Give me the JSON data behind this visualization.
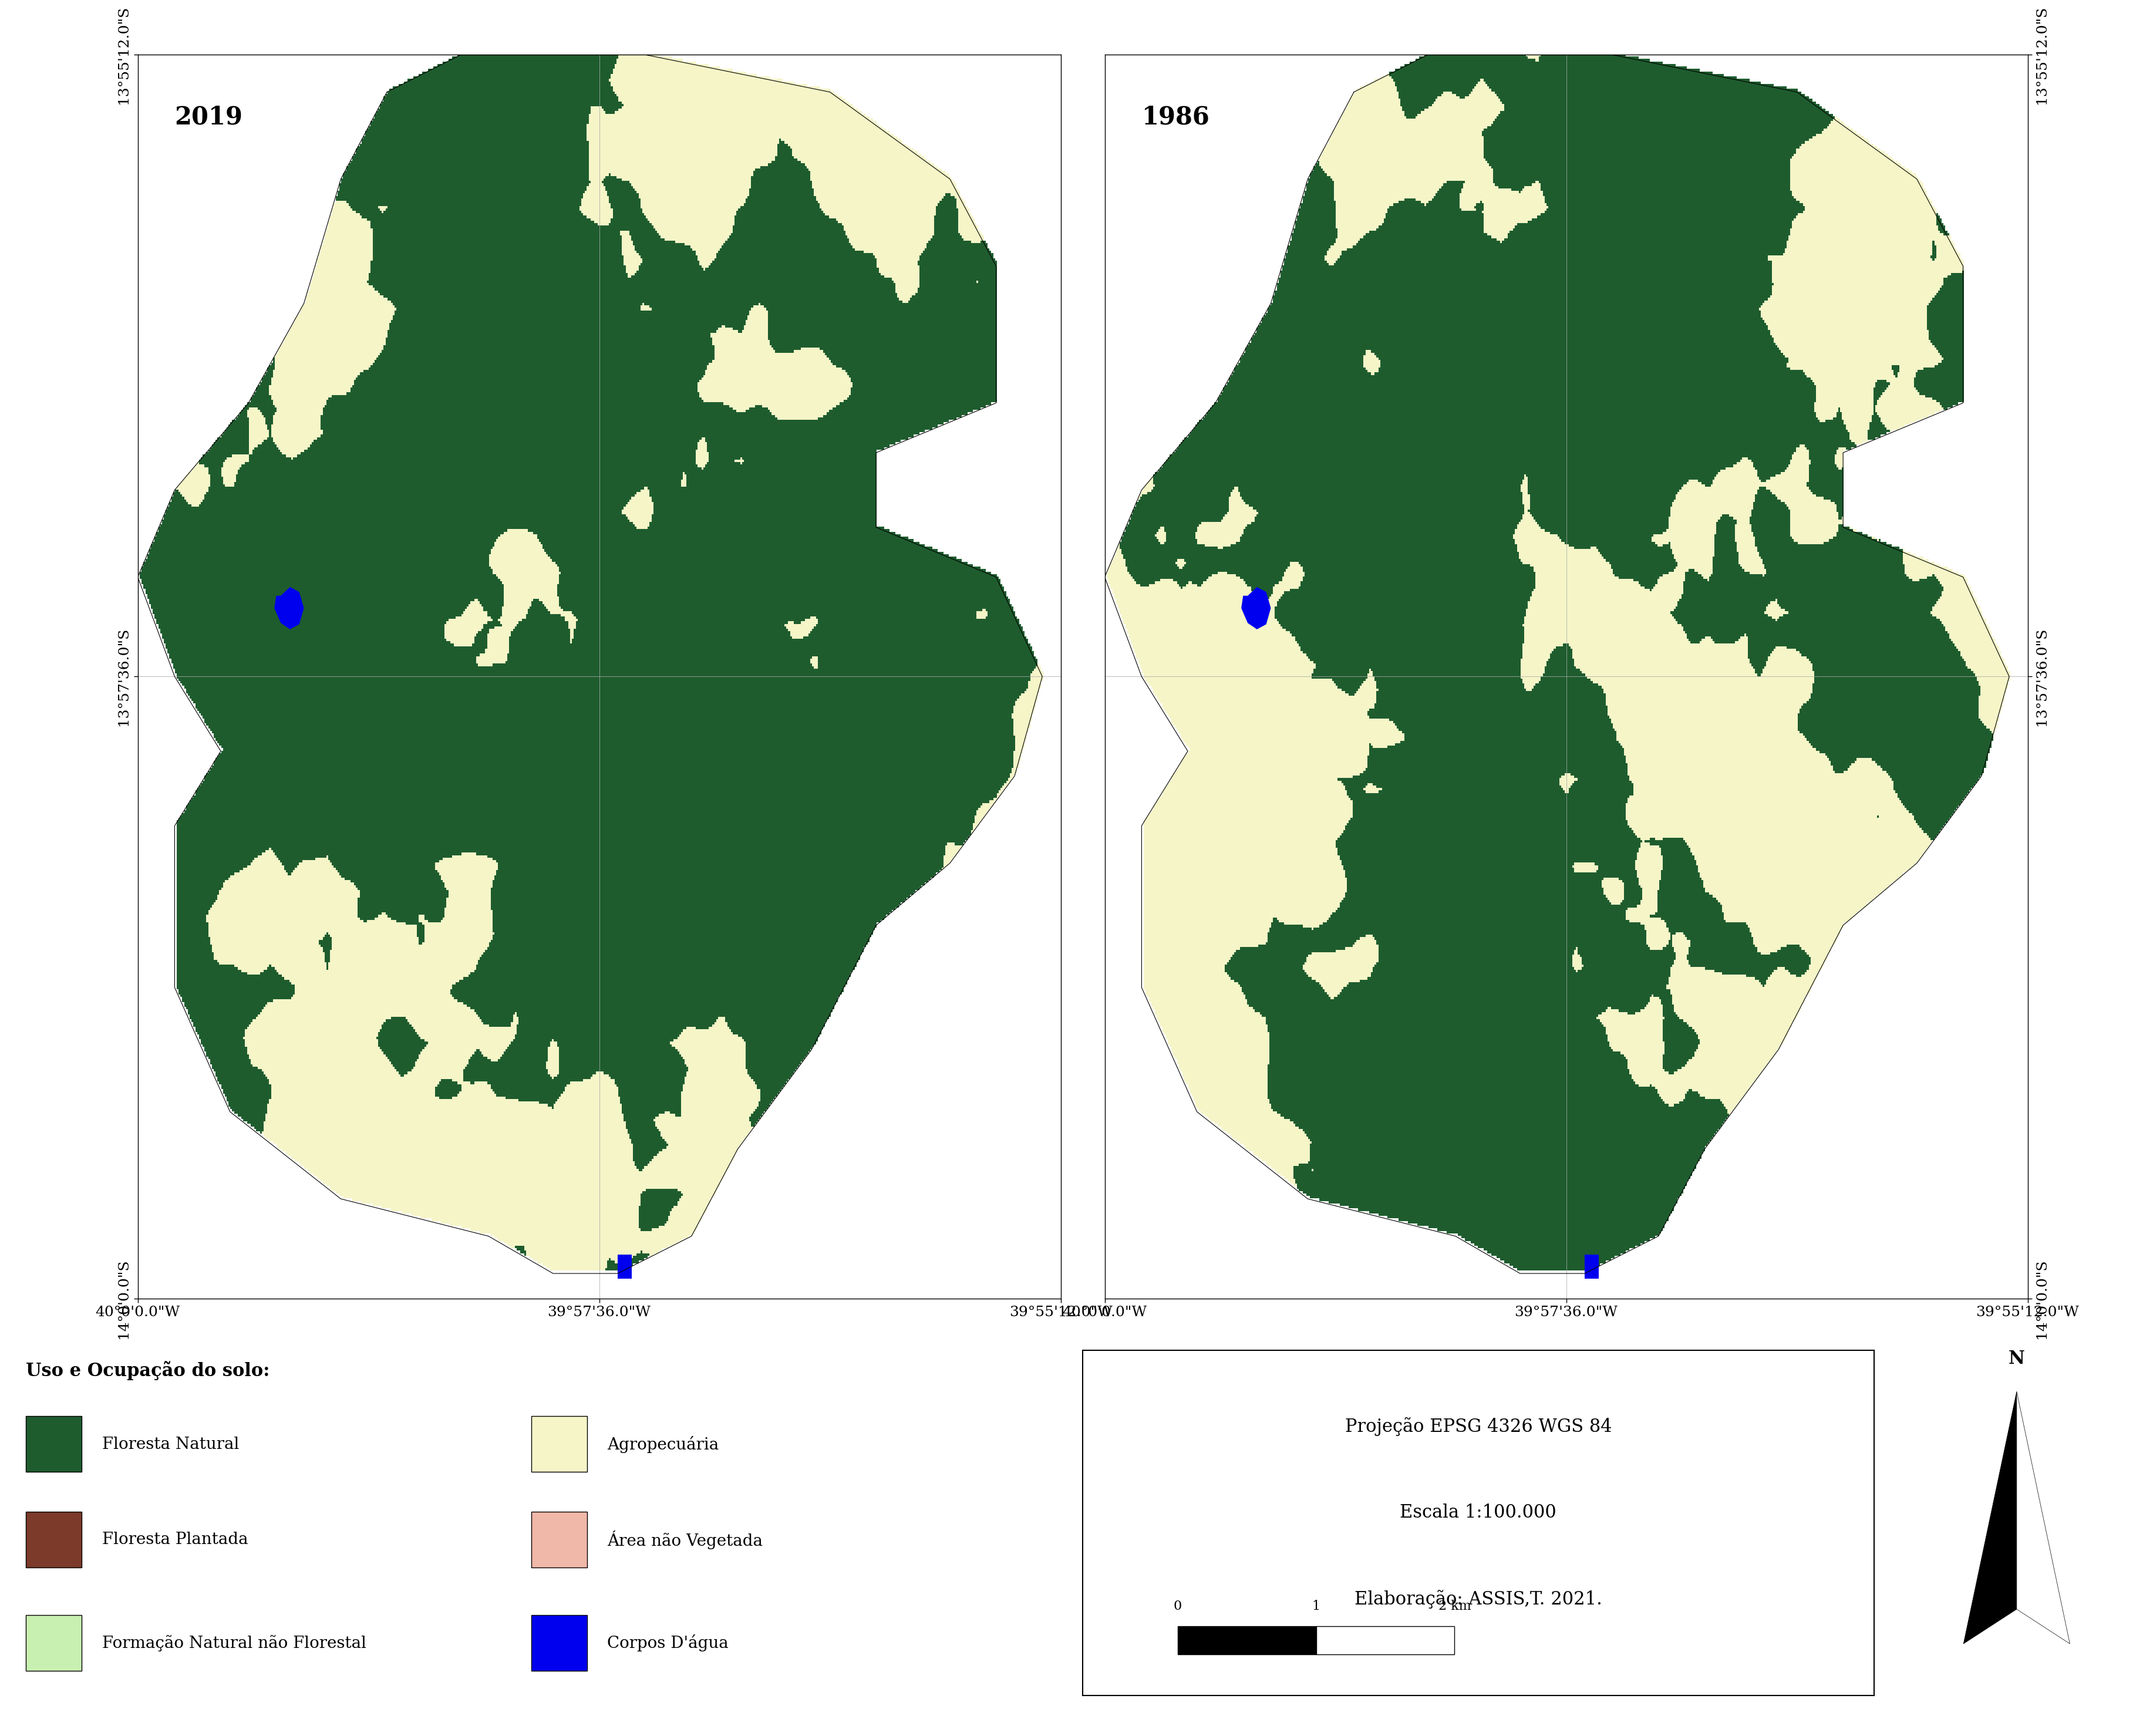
{
  "background_color": "#ffffff",
  "map_border_color": "#000000",
  "year_left": "2019",
  "year_right": "1986",
  "colors": {
    "floresta_natural": "#1e5c2e",
    "floresta_plantada": "#7b3a2a",
    "formacao_natural": "#c8f0b0",
    "agropecuaria": "#f5f5c8",
    "area_nao_vegetada": "#f0b8a8",
    "corpos_dagua": "#0000ee",
    "outside": "#ffffff",
    "grid": "#aaaaaa"
  },
  "legend_title": "Uso e Ocupação do solo:",
  "legend_items_left": [
    {
      "label": "Floresta Natural",
      "color": "#1e5c2e"
    },
    {
      "label": "Floresta Plantada",
      "color": "#7b3a2a"
    },
    {
      "label": "Formação Natural não Florestal",
      "color": "#c8f0b0"
    }
  ],
  "legend_items_right": [
    {
      "label": "Agropecuária",
      "color": "#f5f5c8"
    },
    {
      "label": "Área não Vegetada",
      "color": "#f0b8a8"
    },
    {
      "label": "Corpos D'água",
      "color": "#0000ee"
    }
  ],
  "info_box_lines": [
    "Projeção EPSG 4326 WGS 84",
    "Escala 1:100.000",
    "Elaboração: ASSIS,T. 2021."
  ],
  "x_ticks_labels": [
    "40°0'0.0\"W",
    "39°57'36.0\"W",
    "39°55'12.0\"W"
  ],
  "y_ticks_labels_left": [
    "13°55'12.0\"S",
    "13°57'36.0\"S",
    "14°0'0.0\"S"
  ],
  "y_ticks_labels_right": [
    "13°55'12.0\"S",
    "13°57'36.0\"S",
    "14°0'0.0\"S"
  ],
  "scale_bar_values": [
    "0",
    "1",
    "2 km"
  ],
  "font_size_ticks": 18,
  "font_size_year": 30,
  "font_size_legend_title": 22,
  "font_size_legend": 20,
  "font_size_info": 22
}
